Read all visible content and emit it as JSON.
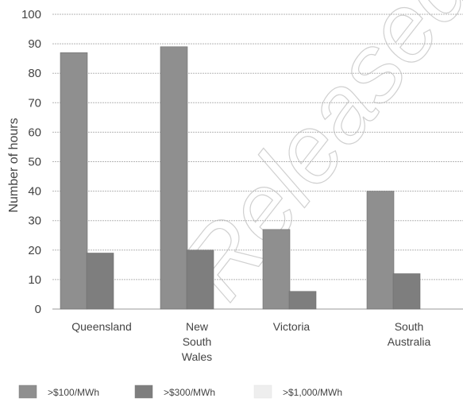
{
  "chart_data": {
    "type": "bar",
    "title": "",
    "xlabel": "",
    "ylabel": "Number of hours",
    "ylim": [
      0,
      100
    ],
    "yticks": [
      0,
      10,
      20,
      30,
      40,
      50,
      60,
      70,
      80,
      90,
      100
    ],
    "grid": true,
    "legend_position": "bottom",
    "categories": [
      [
        "Queensland"
      ],
      [
        "New",
        "South",
        "Wales"
      ],
      [
        "Victoria"
      ],
      [
        "South",
        "Australia"
      ]
    ],
    "series": [
      {
        "name": ">$100/MWh",
        "values": [
          87,
          89,
          27,
          40
        ],
        "color": "#8f8f8f"
      },
      {
        "name": ">$300/MWh",
        "values": [
          19,
          20,
          6,
          12
        ],
        "color": "#7e7e7e"
      },
      {
        "name": ">$1,000/MWh",
        "values": [
          0,
          0,
          0,
          0
        ],
        "color": "#eeeeee"
      }
    ],
    "watermark": "Released"
  }
}
